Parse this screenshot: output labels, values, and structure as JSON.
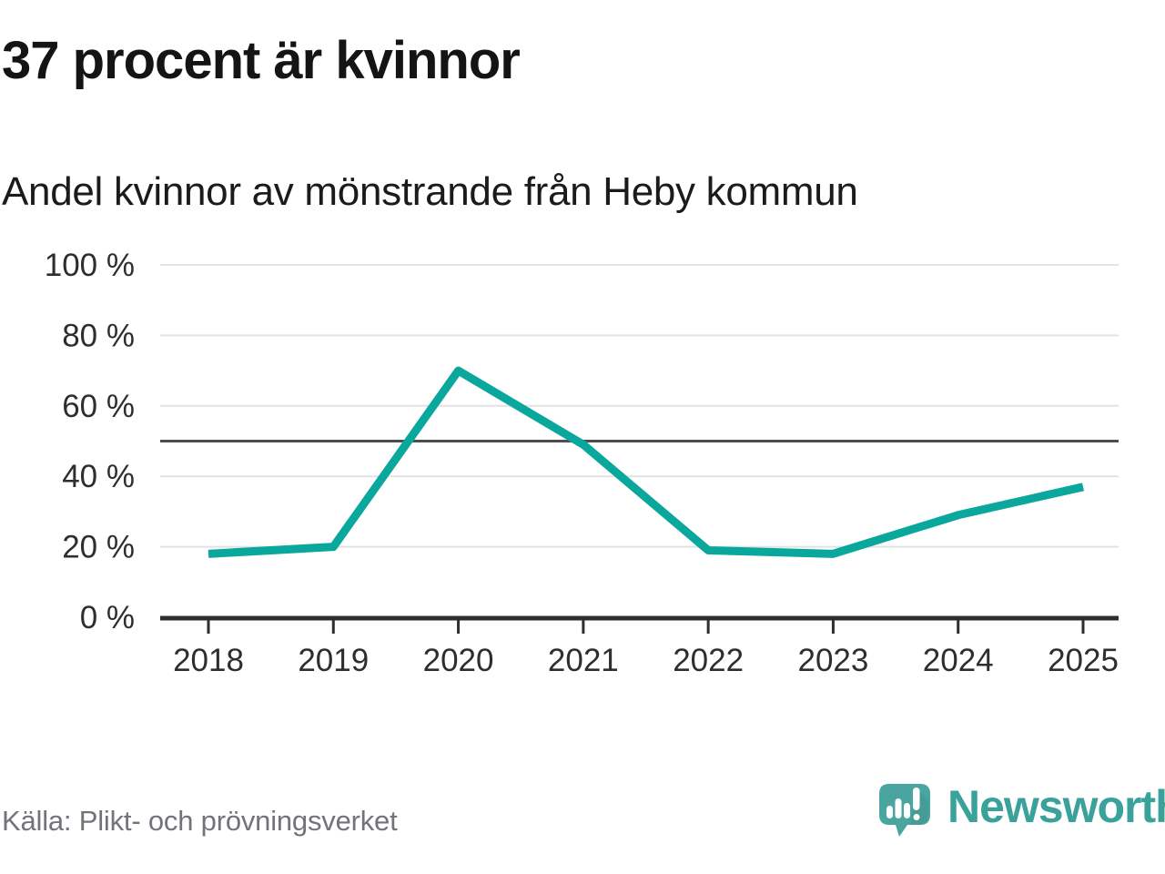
{
  "header": {
    "title": "37 procent är kvinnor",
    "subtitle": "Andel kvinnor av mönstrande från Heby kommun"
  },
  "chart_data": {
    "type": "line",
    "title": "37 procent är kvinnor",
    "subtitle": "Andel kvinnor av mönstrande från Heby kommun",
    "categories": [
      "2018",
      "2019",
      "2020",
      "2021",
      "2022",
      "2023",
      "2024",
      "2025"
    ],
    "values": [
      18,
      20,
      70,
      49,
      19,
      18,
      29,
      37
    ],
    "unit": "%",
    "ylim": [
      0,
      100
    ],
    "yticks": [
      0,
      20,
      40,
      60,
      80,
      100
    ],
    "ytick_suffix": " %",
    "reference_line_y": 50,
    "grid": "horizontal",
    "legend_position": "none",
    "line_color": "#0aa79c",
    "gridline_color": "#e2e2e2",
    "reference_line_color": "#4e4e4e",
    "axis_color": "#2e2e2e"
  },
  "footer": {
    "source": "Källa: Plikt- och prövningsverket",
    "brand": {
      "name": "Newsworthy",
      "icon": "newsworthy-speech-bubble-bar-chart-icon",
      "wordmark_color": "#3ba19b",
      "icon_color": "#4aa5a0"
    }
  }
}
